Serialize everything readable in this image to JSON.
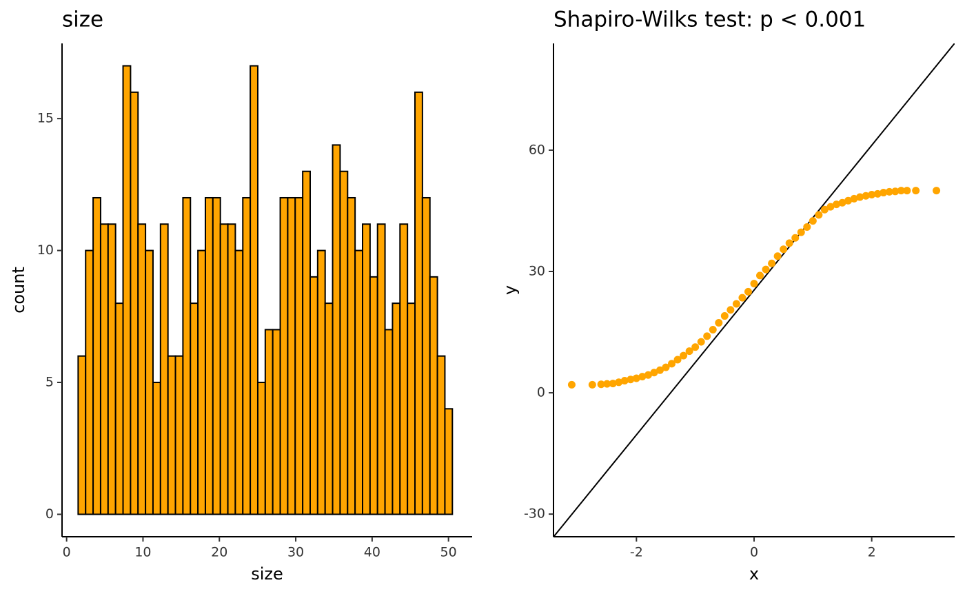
{
  "chart_data": [
    {
      "type": "histogram",
      "title": "size",
      "xlabel": "size",
      "ylabel": "count",
      "color": "#FFA500",
      "edgecolor": "#000000",
      "bins": [
        1.51,
        2.49,
        3.47,
        4.45,
        5.43,
        6.41,
        7.39,
        8.37,
        9.35,
        10.33,
        11.31,
        12.29,
        13.27,
        14.25,
        15.23,
        16.21,
        17.19,
        18.17,
        19.15,
        20.13,
        21.11,
        22.09,
        23.07,
        24.05,
        25.03,
        26.01,
        26.99,
        27.97,
        28.95,
        29.93,
        30.91,
        31.89,
        32.87,
        33.85,
        34.83,
        35.81,
        36.79,
        37.77,
        38.75,
        39.73,
        40.71,
        41.69,
        42.67,
        43.65,
        44.63,
        45.61,
        46.59,
        47.57,
        48.55,
        49.53,
        50.51
      ],
      "counts": [
        6,
        10,
        12,
        11,
        11,
        8,
        17,
        16,
        11,
        10,
        5,
        11,
        6,
        6,
        12,
        8,
        10,
        12,
        12,
        11,
        11,
        10,
        12,
        17,
        5,
        7,
        7,
        12,
        12,
        12,
        13,
        9,
        10,
        8,
        14,
        13,
        12,
        10,
        11,
        9,
        11,
        7,
        8,
        11,
        8,
        16,
        12,
        9,
        6,
        4
      ],
      "xlim": [
        -0.6,
        53.1
      ],
      "xticks": [
        0,
        10,
        20,
        30,
        40,
        50
      ],
      "ylim": [
        -0.85,
        17.85
      ],
      "yticks": [
        0,
        5,
        10,
        15
      ]
    },
    {
      "type": "scatter",
      "title": "Shapiro-Wilks test: p < 0.001",
      "xlabel": "x",
      "ylabel": "y",
      "color": "#FFA500",
      "x": [
        -3.1,
        -2.75,
        -2.6,
        -2.5,
        -2.4,
        -2.3,
        -2.2,
        -2.1,
        -2,
        -1.9,
        -1.8,
        -1.7,
        -1.6,
        -1.5,
        -1.4,
        -1.3,
        -1.2,
        -1.1,
        -1,
        -0.9,
        -0.8,
        -0.7,
        -0.6,
        -0.5,
        -0.4,
        -0.3,
        -0.2,
        -0.1,
        0,
        0.1,
        0.2,
        0.3,
        0.4,
        0.5,
        0.6,
        0.7,
        0.8,
        0.9,
        1,
        1.1,
        1.2,
        1.3,
        1.4,
        1.5,
        1.6,
        1.7,
        1.8,
        1.9,
        2,
        2.1,
        2.2,
        2.3,
        2.4,
        2.5,
        2.6,
        2.75,
        3.1
      ],
      "y": [
        2,
        2,
        2.1,
        2.2,
        2.3,
        2.6,
        3,
        3.3,
        3.6,
        4,
        4.4,
        5,
        5.6,
        6.3,
        7.2,
        8.2,
        9.2,
        10.3,
        11.3,
        12.6,
        14,
        15.6,
        17.3,
        19,
        20.5,
        22,
        23.5,
        25,
        27,
        29,
        30.5,
        32,
        33.8,
        35.5,
        37,
        38.3,
        39.7,
        41,
        42.5,
        44,
        45.3,
        46,
        46.6,
        47,
        47.5,
        48,
        48.4,
        48.7,
        49,
        49.2,
        49.5,
        49.7,
        49.8,
        50,
        50,
        50,
        50
      ],
      "reference_line": {
        "slope": 17.9,
        "intercept": 25.4,
        "color": "#000000"
      },
      "xlim": [
        -3.41,
        3.41
      ],
      "xticks": [
        -2,
        0,
        2
      ],
      "ylim": [
        -35.6,
        86.4
      ],
      "yticks": [
        -30,
        0,
        30,
        60
      ]
    }
  ]
}
